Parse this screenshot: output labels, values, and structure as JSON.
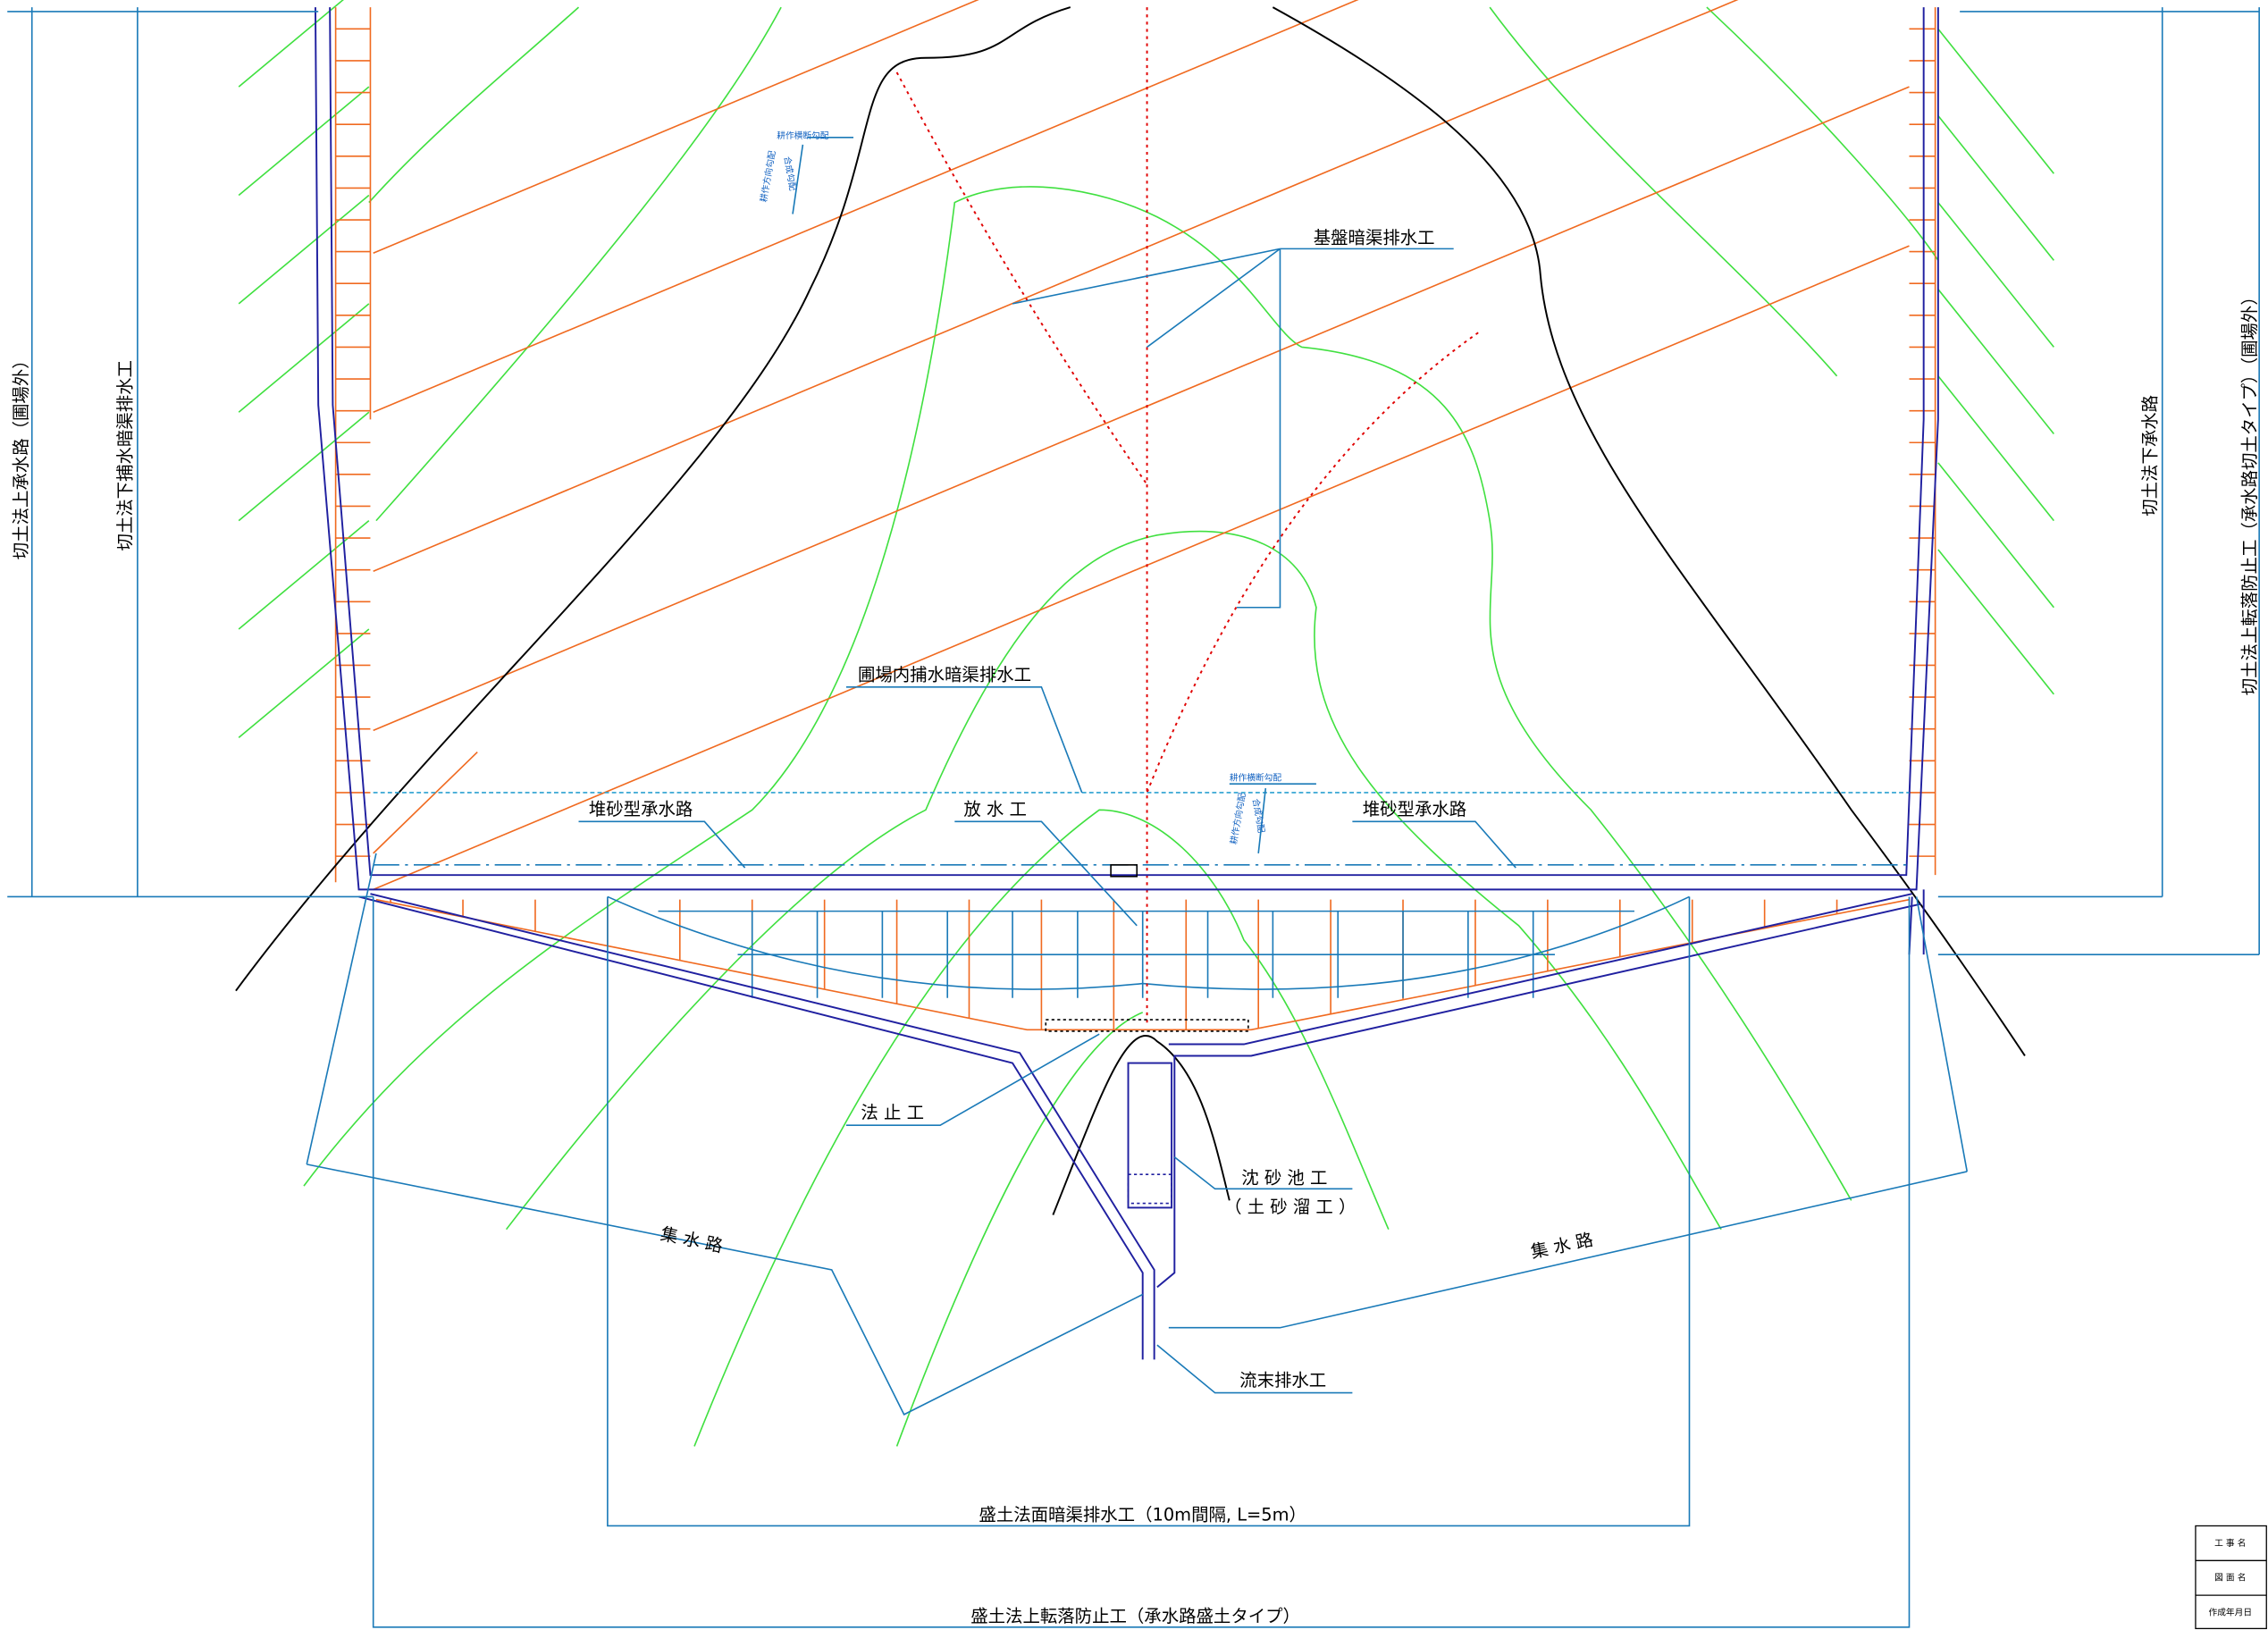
{
  "labels": {
    "base_drain": "基盤暗渠排水工",
    "field_drain": "圃場内捕水暗渠排水工",
    "channel_left": "堆砂型承水路",
    "channel_right": "堆砂型承水路",
    "outlet": "放 水 工",
    "toe": "法 止 工",
    "pond": "沈 砂 池 工",
    "pond_sub": "（ 土 砂 溜 工 ）",
    "collect_left": "集 水 路",
    "collect_right": "集 水 路",
    "end_drain": "流末排水工",
    "fill_drain": "盛土法面暗渠排水工（10m間隔, L=5m）",
    "fill_guard": "盛土法上転落防止工（承水路盛土タイプ）",
    "cut_top_channel": "切土法上承水路（圃場外）",
    "cut_toe_drain": "切土法下捕水暗渠排水工",
    "cut_toe_channel": "切土法下承水路",
    "cut_guard": "切土法上転落防止工（承水路切土タイプ）（圃場外）"
  },
  "slope_notes": [
    {
      "cross": "耕作横断勾配",
      "along": "耕作方向勾配",
      "combined": "合成勾配"
    },
    {
      "cross": "耕作横断勾配",
      "along": "耕作方向勾配",
      "combined": "合成勾配"
    }
  ],
  "title_block": {
    "rows": [
      "工 事 名",
      "図 面 名",
      "作成年月日"
    ]
  }
}
